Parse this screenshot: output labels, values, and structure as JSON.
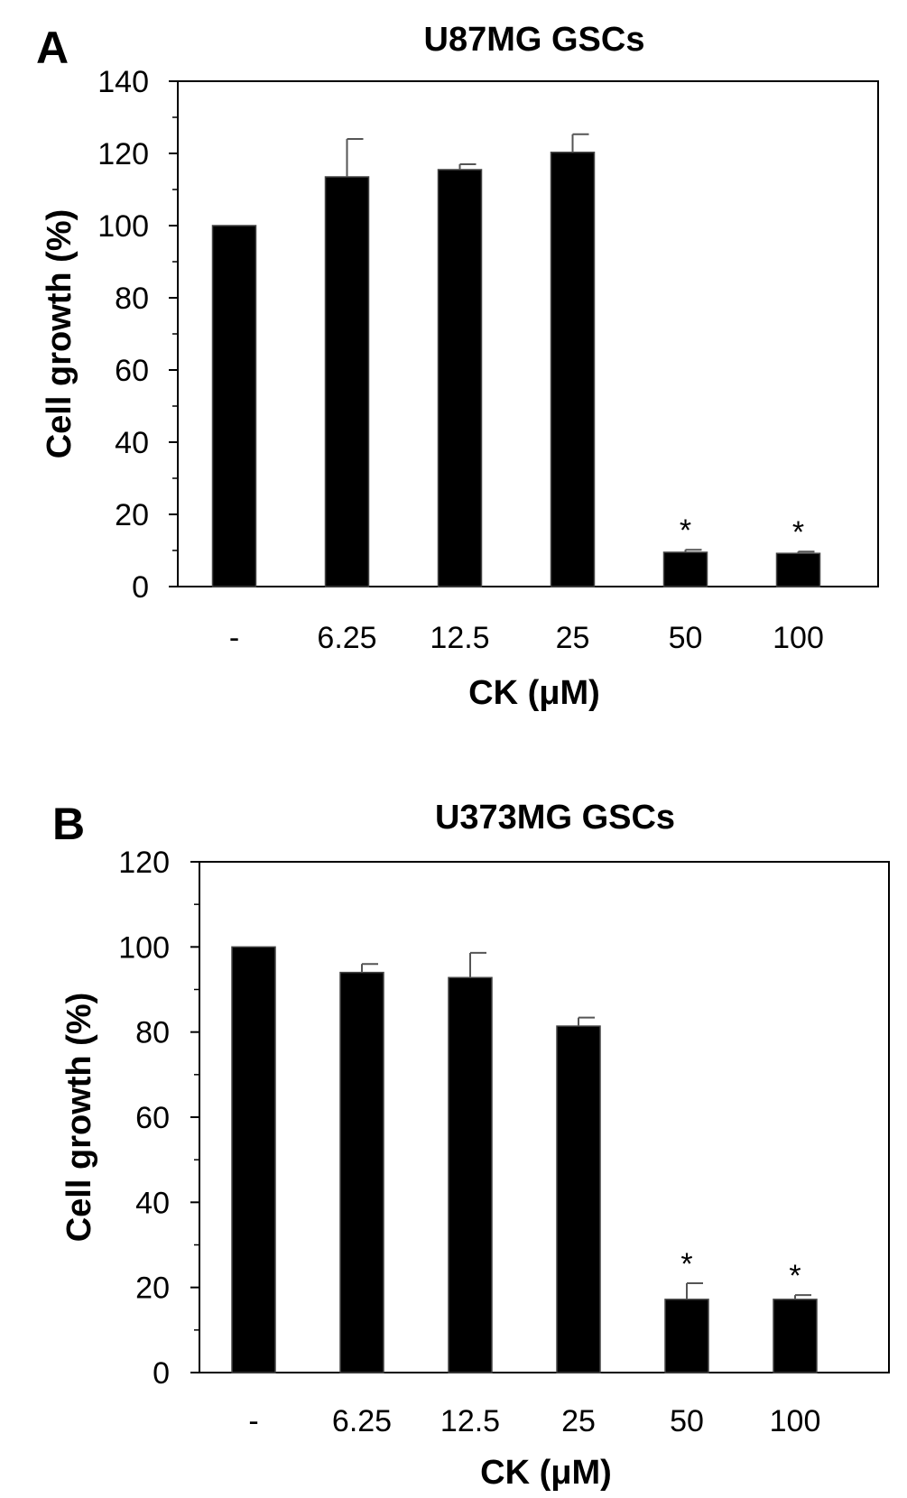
{
  "chart_data": [
    {
      "type": "bar",
      "panel": "A",
      "title": "U87MG GSCs",
      "xlabel": "CK (μM)",
      "ylabel": "Cell growth (%)",
      "categories": [
        "-",
        "6.25",
        "12.5",
        "25",
        "50",
        "100"
      ],
      "values": [
        100,
        113.5,
        115.5,
        120.3,
        9.5,
        9.2
      ],
      "errors": [
        0,
        10.5,
        1.5,
        5,
        0.7,
        0.5
      ],
      "significance": [
        "",
        "",
        "",
        "",
        "*",
        "*"
      ],
      "ylim": [
        0,
        140
      ],
      "yticks": [
        0,
        20,
        40,
        60,
        80,
        100,
        120,
        140
      ],
      "bar_color": "#000000",
      "grid": false,
      "legend": "none"
    },
    {
      "type": "bar",
      "panel": "B",
      "title": "U373MG GSCs",
      "xlabel": "CK (μM)",
      "ylabel": "Cell growth (%)",
      "categories": [
        "-",
        "6.25",
        "12.5",
        "25",
        "50",
        "100"
      ],
      "values": [
        100,
        94,
        92.8,
        81.4,
        17.2,
        17.2
      ],
      "errors": [
        0,
        2,
        5.8,
        2,
        3.8,
        1
      ],
      "significance": [
        "",
        "",
        "",
        "",
        "*",
        "*"
      ],
      "ylim": [
        0,
        120
      ],
      "yticks": [
        0,
        20,
        40,
        60,
        80,
        100,
        120
      ],
      "bar_color": "#000000",
      "grid": false,
      "legend": "none"
    }
  ]
}
